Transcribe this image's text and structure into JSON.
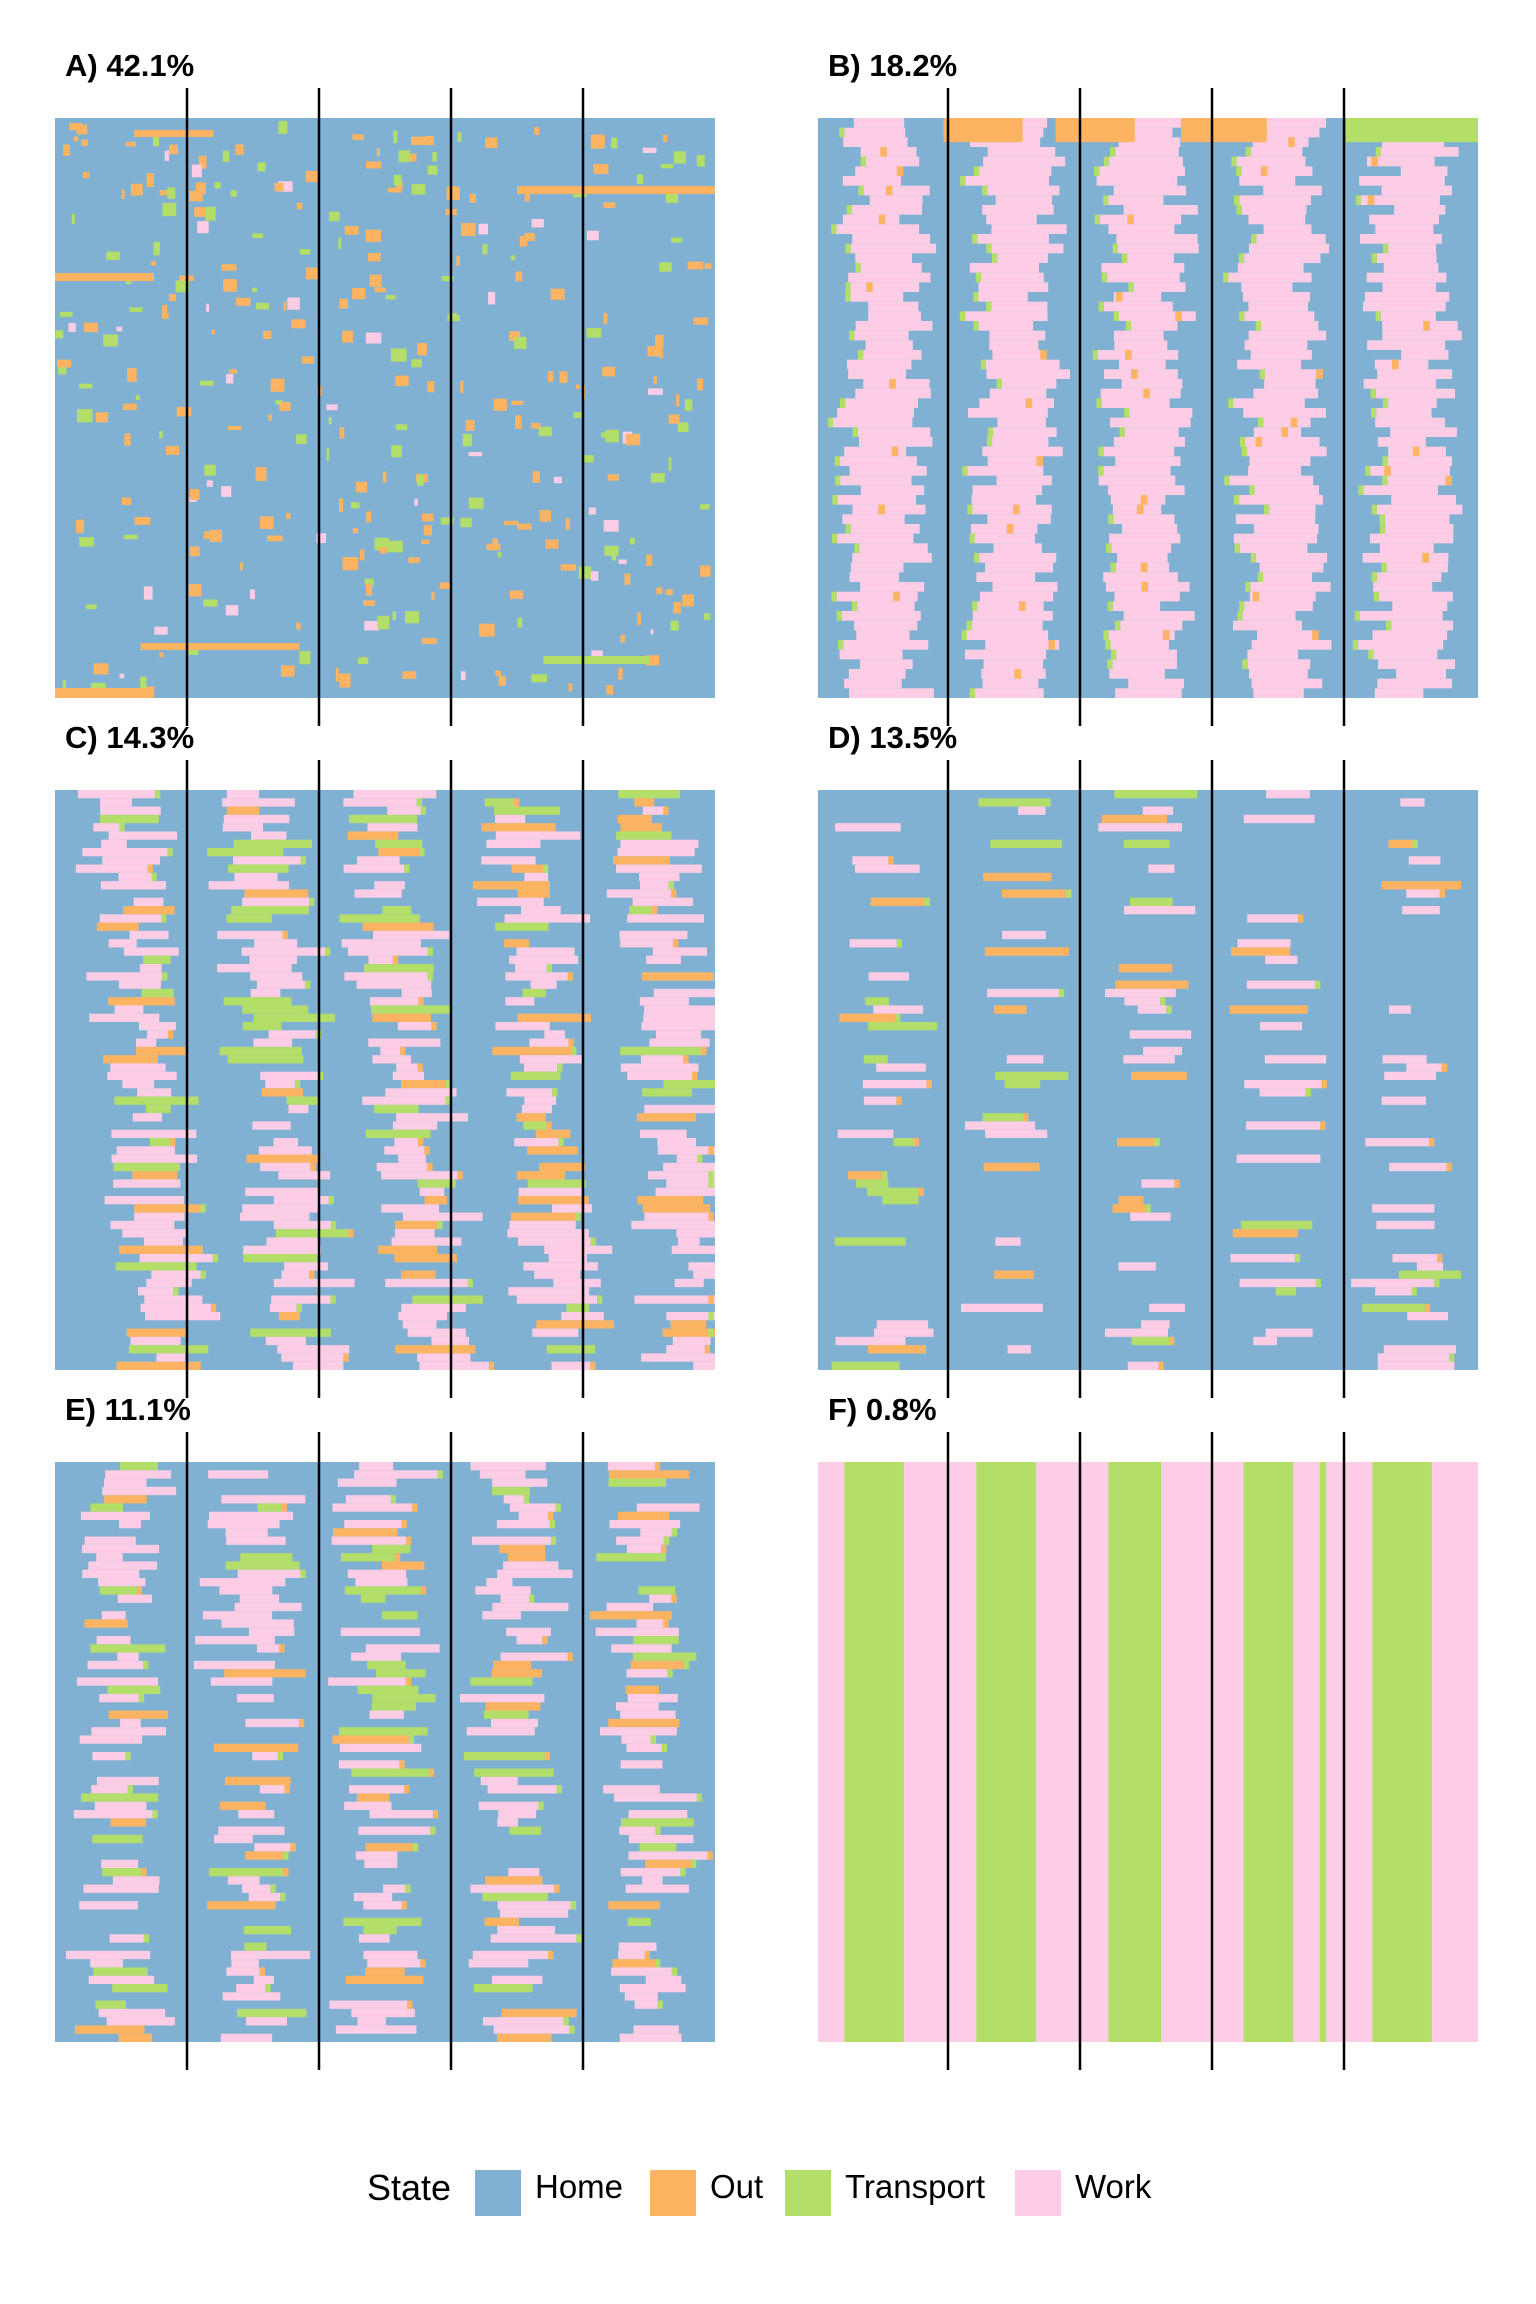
{
  "chart_data": [
    {
      "type": "heatmap",
      "title": "A) 42.1%",
      "panel": "A",
      "share_percent": 42.1,
      "pattern": "mostly-home"
    },
    {
      "type": "heatmap",
      "title": "B) 18.2%",
      "panel": "B",
      "share_percent": 18.2,
      "pattern": "weekday-work-day"
    },
    {
      "type": "heatmap",
      "title": "C) 14.3%",
      "panel": "C",
      "share_percent": 14.3,
      "pattern": "diagonal-work"
    },
    {
      "type": "heatmap",
      "title": "D) 13.5%",
      "panel": "D",
      "share_percent": 13.5,
      "pattern": "sparse-mixed"
    },
    {
      "type": "heatmap",
      "title": "E) 11.1%",
      "panel": "E",
      "share_percent": 11.1,
      "pattern": "mixed-work-out"
    },
    {
      "type": "heatmap",
      "title": "F) 0.8%",
      "panel": "F",
      "share_percent": 0.8,
      "pattern": "work-transport-stripes"
    }
  ],
  "legend": {
    "title": "State",
    "placement": "bottom",
    "items": [
      {
        "label": "Home",
        "color": "#80b1d3"
      },
      {
        "label": "Out",
        "color": "#fdb462"
      },
      {
        "label": "Transport",
        "color": "#b3de69"
      },
      {
        "label": "Work",
        "color": "#fccde5"
      }
    ]
  },
  "divider_count_per_panel": 4,
  "divider_color": "#000000"
}
